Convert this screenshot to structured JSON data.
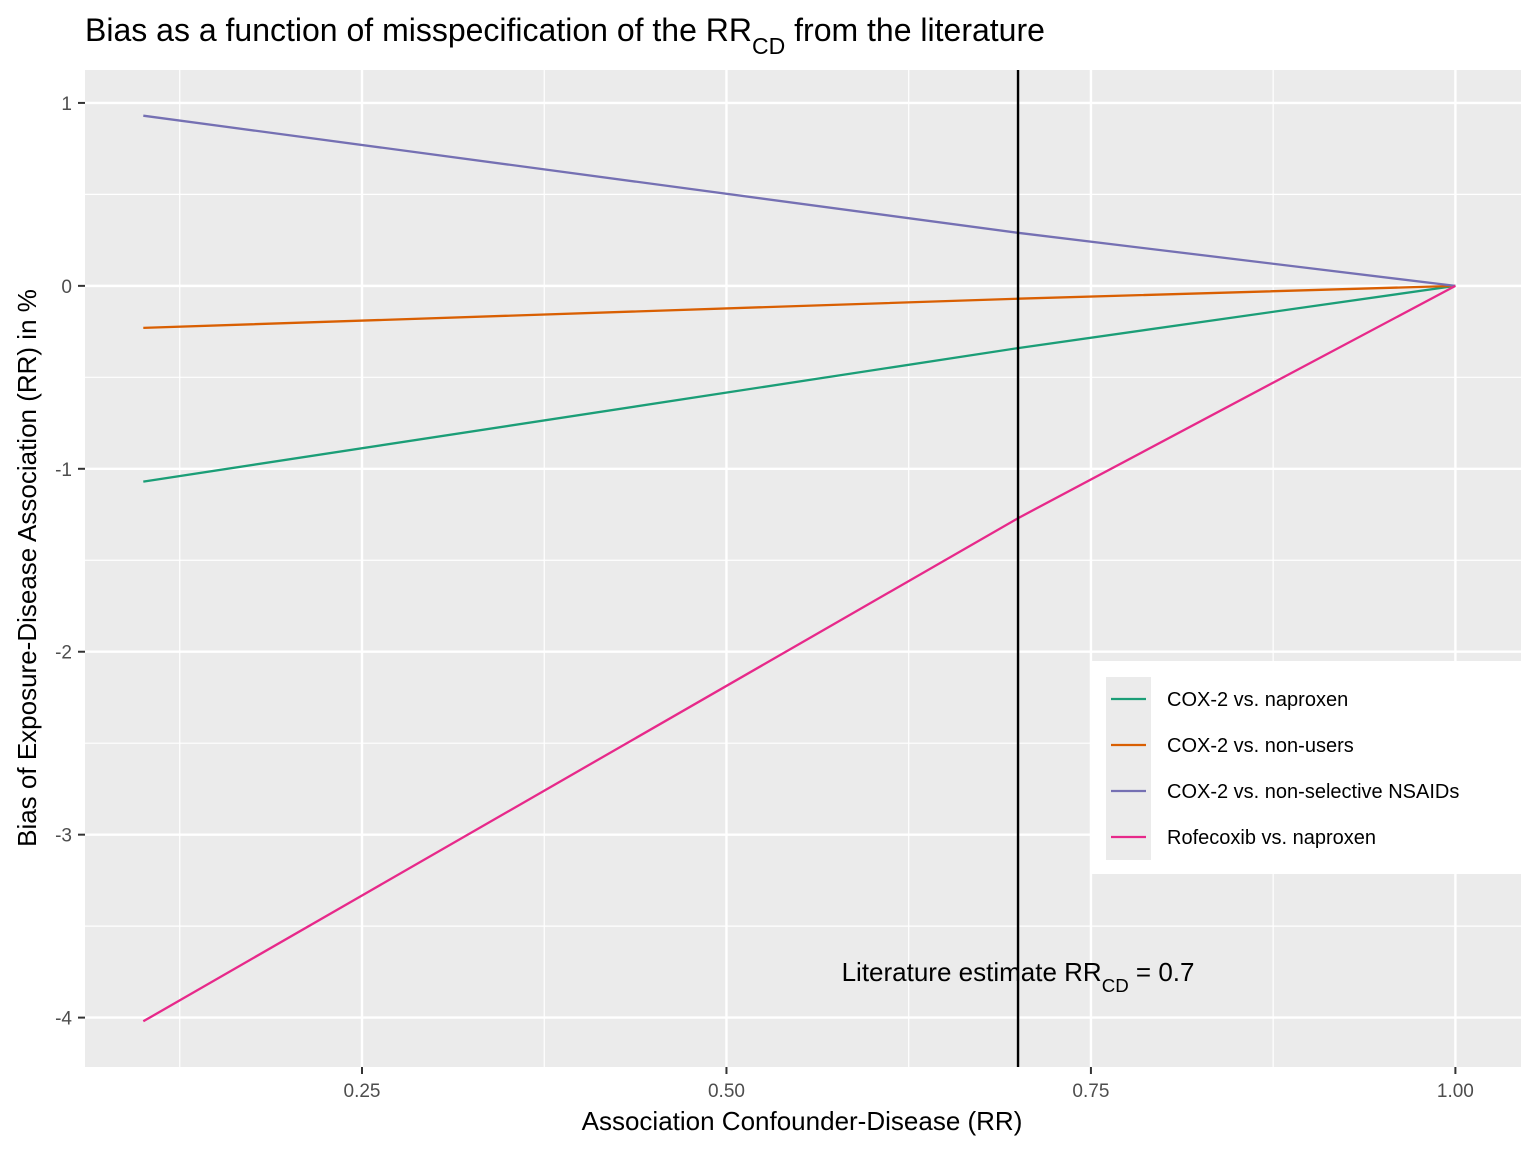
{
  "chart_data": {
    "type": "line",
    "title": "Bias as a function of misspecification of the RR",
    "title_subscript": "CD",
    "title_suffix": " from the literature",
    "xlabel": "Association Confounder-Disease (RR)",
    "ylabel": "Bias of Exposure-Disease Association (RR) in %",
    "xlim": [
      0.06,
      1.045
    ],
    "ylim": [
      -4.27,
      1.18
    ],
    "x_ticks": [
      0.25,
      0.5,
      0.75,
      1.0
    ],
    "x_tick_labels": [
      "0.25",
      "0.50",
      "0.75",
      "1.00"
    ],
    "y_ticks": [
      1,
      0,
      -1,
      -2,
      -3,
      -4
    ],
    "y_tick_labels": [
      "1",
      "0",
      "-1",
      "-2",
      "-3",
      "-4"
    ],
    "grid": true,
    "legend_position": "right",
    "series": [
      {
        "name": "COX-2 vs. naproxen",
        "color": "#1b9e77",
        "x": [
          0.1,
          0.7,
          1.0
        ],
        "y": [
          -1.07,
          -0.34,
          0.0
        ]
      },
      {
        "name": "COX-2 vs. non-users",
        "color": "#d95f02",
        "x": [
          0.1,
          0.7,
          1.0
        ],
        "y": [
          -0.23,
          -0.07,
          0.0
        ]
      },
      {
        "name": "COX-2 vs. non-selective NSAIDs",
        "color": "#7570b3",
        "x": [
          0.1,
          0.7,
          1.0
        ],
        "y": [
          0.93,
          0.29,
          0.0
        ]
      },
      {
        "name": "Rofecoxib vs. naproxen",
        "color": "#e7298a",
        "x": [
          0.1,
          0.7,
          1.0
        ],
        "y": [
          -4.02,
          -1.27,
          0.0
        ]
      }
    ],
    "vline": {
      "x": 0.7,
      "color": "#000000"
    },
    "annotation": {
      "text": "Literature estimate RR",
      "subscript": "CD",
      "suffix": " = 0.7",
      "x": 0.7,
      "y": -3.75
    }
  }
}
